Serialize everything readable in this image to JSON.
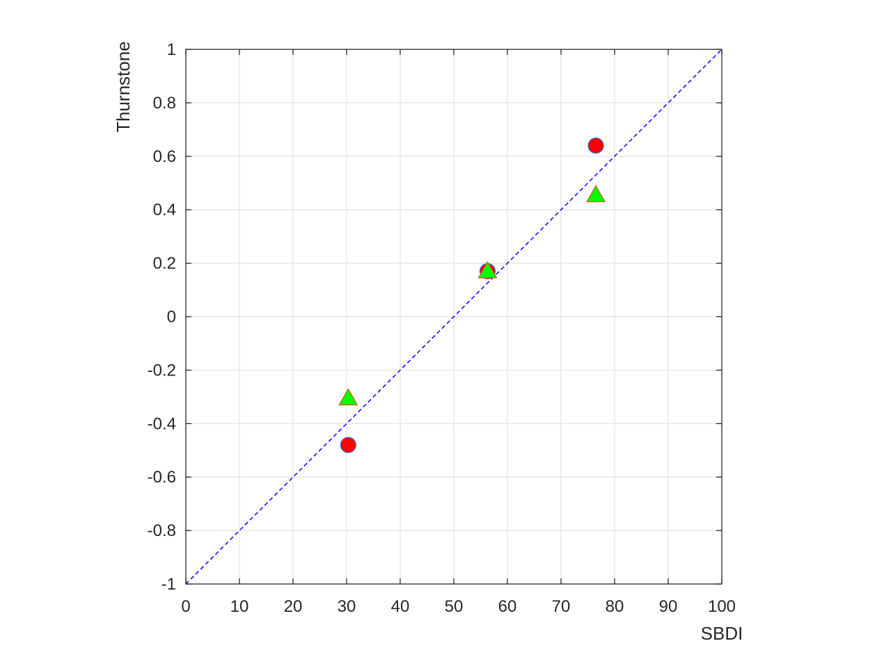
{
  "chart_data": {
    "type": "scatter",
    "xlabel": "SBDI",
    "ylabel": "Thurnstone",
    "xlim": [
      0,
      100
    ],
    "ylim": [
      -1,
      1
    ],
    "xticks": [
      0,
      10,
      20,
      30,
      40,
      50,
      60,
      70,
      80,
      90,
      100
    ],
    "yticks": [
      -1,
      -0.8,
      -0.6,
      -0.4,
      -0.2,
      0,
      0.2,
      0.4,
      0.6,
      0.8,
      1
    ],
    "xtick_labels": [
      "0",
      "10",
      "20",
      "30",
      "40",
      "50",
      "60",
      "70",
      "80",
      "90",
      "100"
    ],
    "ytick_labels": [
      "-1",
      "-0.8",
      "-0.6",
      "-0.4",
      "-0.2",
      "0",
      "0.2",
      "0.4",
      "0.6",
      "0.8",
      "1"
    ],
    "grid": true,
    "series": [
      {
        "marker": "circle",
        "fill": "#ff0000",
        "stroke": "#2f6fd6",
        "x": [
          30.3,
          56.3,
          76.5
        ],
        "y": [
          -0.48,
          0.17,
          0.64
        ]
      },
      {
        "marker": "triangle",
        "fill": "#00ff00",
        "stroke": "#d95319",
        "x": [
          30.3,
          56.3,
          76.5
        ],
        "y": [
          -0.31,
          0.165,
          0.45
        ]
      }
    ],
    "reference_line": {
      "style": "dashed",
      "color": "#0000ff",
      "x": [
        0,
        100
      ],
      "y": [
        -1,
        1
      ]
    }
  }
}
